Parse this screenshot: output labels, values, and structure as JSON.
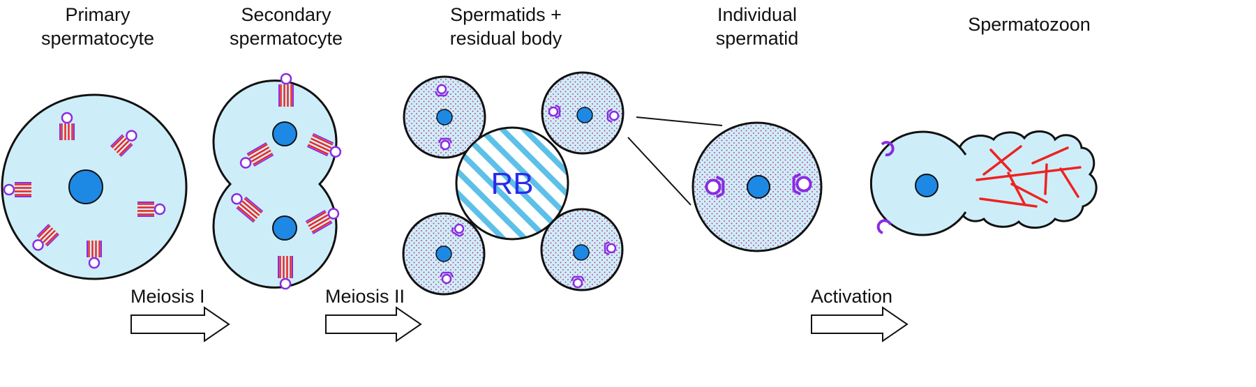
{
  "stages": [
    {
      "id": "primary",
      "label": [
        "Primary",
        "spermatocyte"
      ]
    },
    {
      "id": "secondary",
      "label": [
        "Secondary",
        "spermatocyte"
      ]
    },
    {
      "id": "spermatids",
      "label": [
        "Spermatids +",
        "residual body"
      ]
    },
    {
      "id": "individual",
      "label": [
        "Individual",
        "spermatid"
      ]
    },
    {
      "id": "spermatozoon",
      "label": [
        "Spermatozoon"
      ]
    }
  ],
  "steps": [
    {
      "id": "meiosis-1",
      "label": "Meiosis I"
    },
    {
      "id": "meiosis-2",
      "label": "Meiosis II"
    },
    {
      "id": "activation",
      "label": "Activation"
    }
  ],
  "residual_body": {
    "label": "RB"
  },
  "colors": {
    "cytoplasm": "#cdeef8",
    "nucleus": "#1e88e5",
    "outline": "#111111",
    "chromosome": "#ee2222",
    "centrosome": "#8a2be2",
    "stipple": "#c02080",
    "rb_stripe": "#5cc0e8",
    "rb_text": "#2a2aee",
    "fiber": "#ee2222"
  }
}
